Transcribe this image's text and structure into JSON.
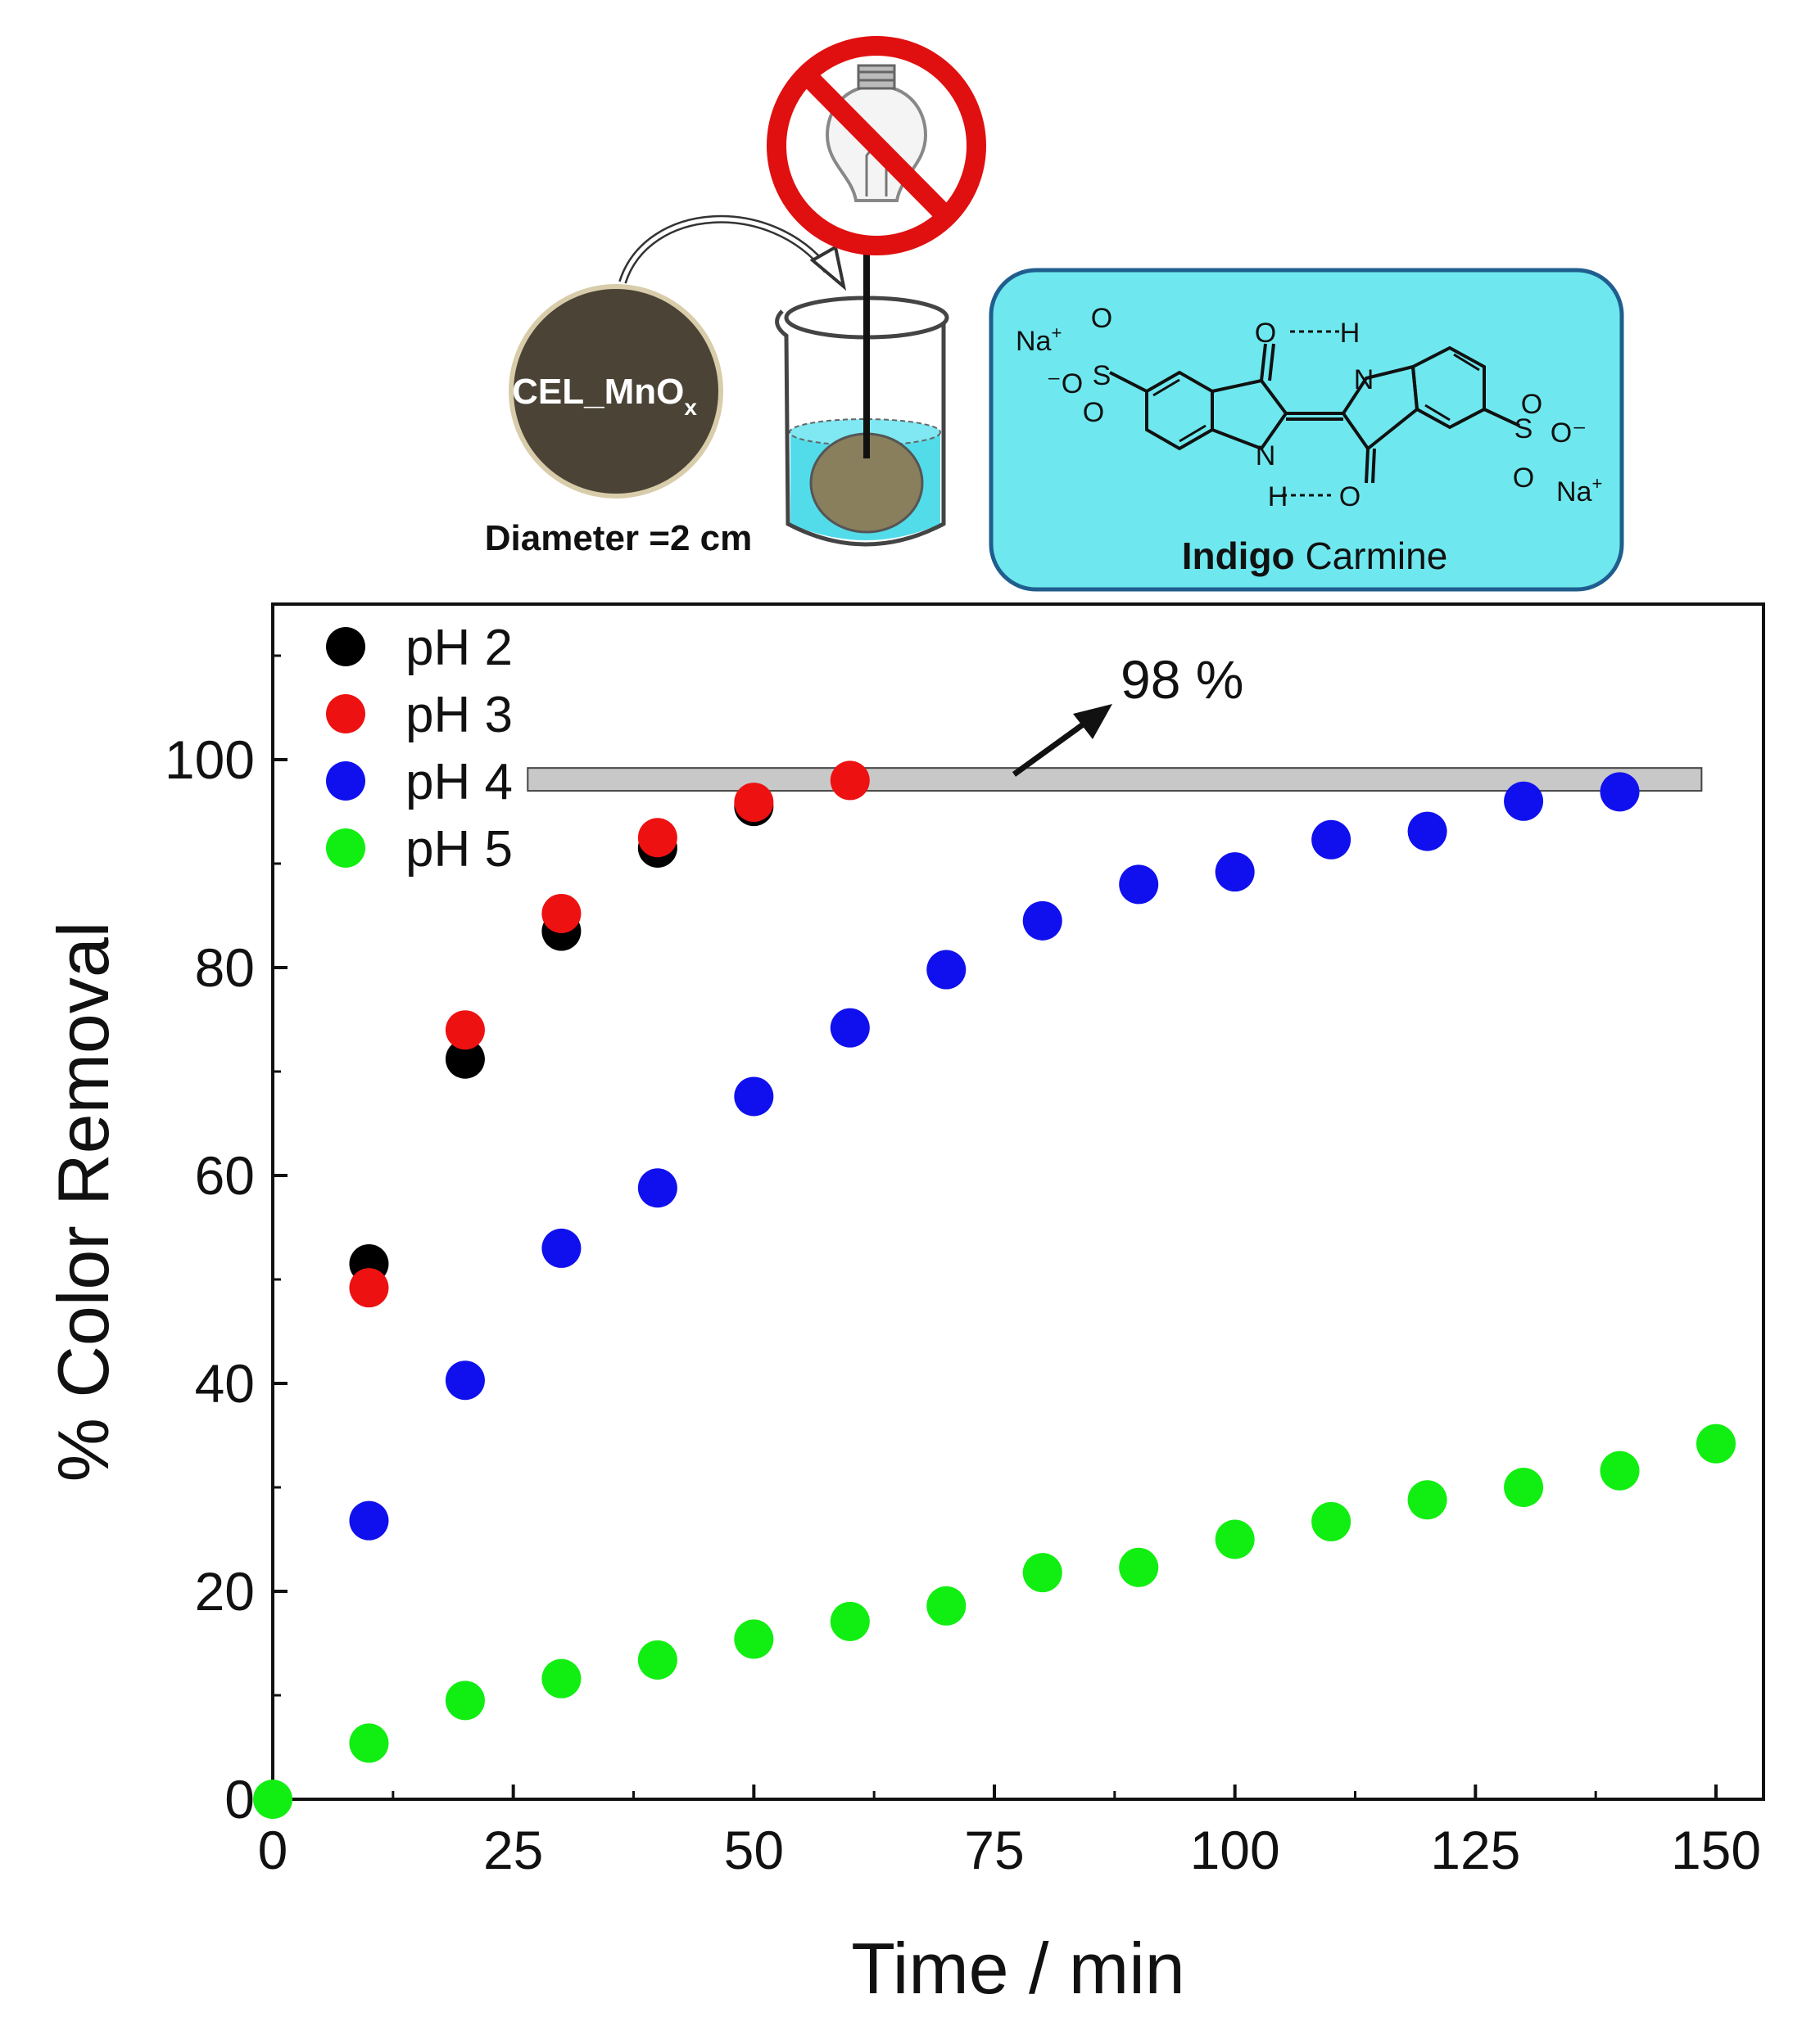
{
  "chart_data": {
    "type": "scatter",
    "xlabel": "Time / min",
    "ylabel": "% Color Removal",
    "xlim": [
      0,
      155
    ],
    "ylim": [
      0,
      115
    ],
    "xticks": [
      "0",
      "25",
      "50",
      "75",
      "100",
      "125",
      "150"
    ],
    "yticks": [
      "0",
      "20",
      "40",
      "60",
      "80",
      "100"
    ],
    "legend_position": "top-left",
    "series": [
      {
        "name": "pH 2",
        "color": "#000000",
        "x": [
          10,
          20,
          30,
          40,
          50
        ],
        "y": [
          51.5,
          71.2,
          83.5,
          91.5,
          95.5
        ]
      },
      {
        "name": "pH 3",
        "color": "#ee1111",
        "x": [
          10,
          20,
          30,
          40,
          50,
          60
        ],
        "y": [
          49.2,
          74,
          85.2,
          92.5,
          95.9,
          98
        ]
      },
      {
        "name": "pH 4",
        "color": "#1010ee",
        "x": [
          10,
          20,
          30,
          40,
          50,
          60,
          70,
          80,
          90,
          100,
          110,
          120,
          130,
          140
        ],
        "y": [
          26.8,
          40.3,
          53,
          58.8,
          67.6,
          74.2,
          79.8,
          84.5,
          88,
          89.2,
          92.3,
          93.1,
          96,
          96.9
        ]
      },
      {
        "name": "pH 5",
        "color": "#11ee11",
        "x": [
          0,
          10,
          20,
          30,
          40,
          50,
          60,
          70,
          80,
          90,
          100,
          110,
          120,
          130,
          140,
          150
        ],
        "y": [
          0,
          5.4,
          9.5,
          11.6,
          13.4,
          15.4,
          17.1,
          18.6,
          21.8,
          22.3,
          25,
          26.7,
          28.8,
          30,
          31.6,
          34.2
        ]
      }
    ],
    "reference_band": {
      "y_min": 97,
      "y_max": 99.2,
      "x_start": 26.5,
      "x_end": 148.5,
      "color": "#c8c8c8"
    },
    "annotation": {
      "text": "98 %"
    }
  },
  "illustration": {
    "disc_label": "CEL_MnO",
    "disc_label_subscript": "x",
    "disc_caption": "Diameter =2 cm",
    "no_light_icon": "no-light-bulb-icon",
    "molecule_name_bold": "Indigo",
    "molecule_name_rest": " Carmine",
    "na_plus_left": "Na",
    "na_plus_right": "Na",
    "plus": "+",
    "colors": {
      "disc": "#4a4336",
      "disc_ring": "#d8ccaa",
      "water": "#3fd8e8",
      "panel": "#6ee8ee",
      "panel_border": "#1f5e8e",
      "forbidden": "#e01010"
    }
  }
}
